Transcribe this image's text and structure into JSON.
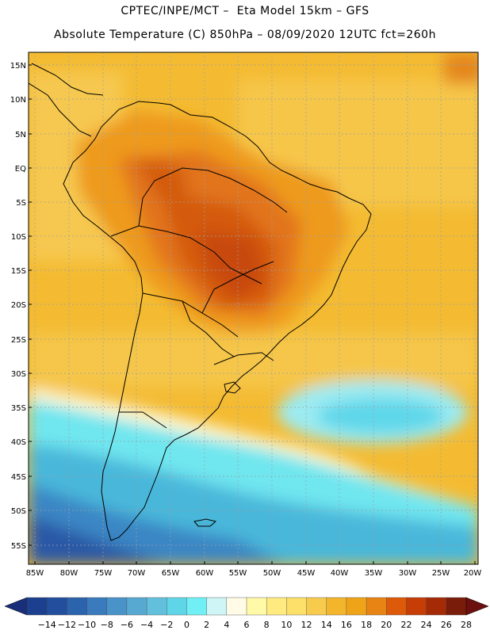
{
  "header": {
    "line1": "CPTEC/INPE/MCT –  Eta Model 15km – GFS",
    "line2": "Absolute Temperature (C) 850hPa – 08/09/2020 12UTC fct=260h"
  },
  "axes": {
    "lat_labels": [
      "15N",
      "10N",
      "5N",
      "EQ",
      "5S",
      "10S",
      "15S",
      "20S",
      "25S",
      "30S",
      "35S",
      "40S",
      "45S",
      "50S",
      "55S"
    ],
    "lon_labels": [
      "85W",
      "80W",
      "75W",
      "70W",
      "65W",
      "60W",
      "55W",
      "50W",
      "45W",
      "40W",
      "35W",
      "30W",
      "25W",
      "20W"
    ]
  },
  "colorbar": {
    "labels": [
      "-14",
      "-12",
      "-10",
      "-8",
      "-6",
      "-4",
      "-2",
      "0",
      "2",
      "4",
      "6",
      "8",
      "10",
      "12",
      "14",
      "16",
      "18",
      "20",
      "22",
      "24",
      "26",
      "28"
    ],
    "colors": [
      "#1d3f8f",
      "#234e9d",
      "#2c63ad",
      "#3a7bbd",
      "#4a93c8",
      "#58a9d2",
      "#62c0dd",
      "#5fd6e8",
      "#70f0f4",
      "#cff5f7",
      "#fffbe6",
      "#fff9a8",
      "#ffeb80",
      "#fde06a",
      "#f7cc4e",
      "#f3b52c",
      "#eea318",
      "#e88414",
      "#dc5a0a",
      "#c63d06",
      "#a52a06",
      "#7a1c0a"
    ],
    "left_arrow": "#1a2f7a",
    "right_arrow": "#6b0f0f"
  },
  "colors": {
    "land_border": "#000000",
    "grid": "#9aa0a8"
  }
}
